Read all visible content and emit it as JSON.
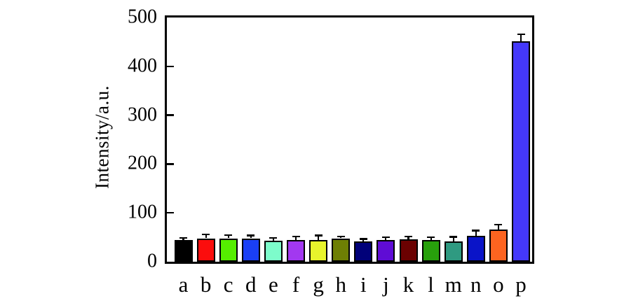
{
  "figure": {
    "background_color": "#ffffff",
    "axis_color": "#000000",
    "error_bar_color": "#000000"
  },
  "chart_data": {
    "type": "bar",
    "title": "",
    "xlabel": "",
    "ylabel": "Intensity/a.u.",
    "categories": [
      "a",
      "b",
      "c",
      "d",
      "e",
      "f",
      "g",
      "h",
      "i",
      "j",
      "k",
      "l",
      "m",
      "n",
      "o",
      "p"
    ],
    "values": [
      44,
      48,
      48,
      48,
      43,
      45,
      45,
      48,
      42,
      44,
      46,
      45,
      41,
      53,
      66,
      452
    ],
    "errors": [
      3,
      6,
      5,
      4,
      4,
      5,
      7,
      2,
      3,
      4,
      4,
      3,
      8,
      9,
      8,
      12
    ],
    "bar_colors": [
      "#000000",
      "#fb0d0d",
      "#55ee00",
      "#1a3ff5",
      "#7dfccb",
      "#a238f0",
      "#e8f42c",
      "#6e7f04",
      "#010179",
      "#5f0cd5",
      "#6b0101",
      "#28a00c",
      "#2f9a81",
      "#0a14c8",
      "#fd6420",
      "#4438fa"
    ],
    "ylim": [
      0,
      500
    ],
    "yticks": [
      0,
      100,
      200,
      300,
      400,
      500
    ],
    "grid": false,
    "legend": null,
    "frame": "box",
    "error_bars": "upper caps shown, black"
  }
}
